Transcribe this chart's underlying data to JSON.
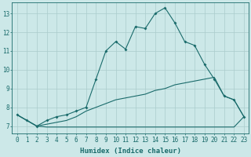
{
  "xlabel": "Humidex (Indice chaleur)",
  "background_color": "#cce8e8",
  "grid_color": "#aacccc",
  "line_color": "#1a6b6b",
  "xlim": [
    -0.5,
    23.5
  ],
  "ylim": [
    6.6,
    13.6
  ],
  "xticks": [
    0,
    1,
    2,
    3,
    4,
    5,
    6,
    7,
    8,
    9,
    10,
    11,
    12,
    13,
    14,
    15,
    16,
    17,
    18,
    19,
    20,
    21,
    22,
    23
  ],
  "yticks": [
    7,
    8,
    9,
    10,
    11,
    12,
    13
  ],
  "series1_x": [
    0,
    1,
    2,
    3,
    4,
    5,
    6,
    7,
    8,
    9,
    10,
    11,
    12,
    13,
    14,
    15,
    16,
    17,
    18,
    19,
    20,
    21,
    22,
    23
  ],
  "series1_y": [
    7.6,
    7.3,
    7.0,
    7.3,
    7.5,
    7.6,
    7.8,
    8.0,
    9.5,
    11.0,
    11.5,
    11.1,
    12.3,
    12.2,
    13.0,
    13.3,
    12.5,
    11.5,
    11.3,
    10.3,
    9.5,
    8.6,
    8.4,
    7.5
  ],
  "series2_x": [
    0,
    1,
    2,
    3,
    4,
    5,
    6,
    7,
    8,
    9,
    10,
    11,
    12,
    13,
    14,
    15,
    16,
    17,
    18,
    19,
    20,
    21,
    22,
    23
  ],
  "series2_y": [
    7.6,
    7.3,
    7.0,
    7.1,
    7.2,
    7.3,
    7.5,
    7.8,
    8.0,
    8.2,
    8.4,
    8.5,
    8.6,
    8.7,
    8.9,
    9.0,
    9.2,
    9.3,
    9.4,
    9.5,
    9.6,
    8.6,
    8.4,
    7.5
  ],
  "series3_x": [
    0,
    1,
    2,
    3,
    4,
    5,
    6,
    7,
    8,
    9,
    10,
    11,
    12,
    13,
    14,
    15,
    16,
    17,
    18,
    19,
    20,
    21,
    22,
    23
  ],
  "series3_y": [
    7.6,
    7.3,
    7.0,
    6.95,
    6.95,
    6.95,
    6.95,
    6.95,
    6.95,
    6.95,
    6.95,
    6.95,
    6.95,
    6.95,
    6.95,
    6.95,
    6.95,
    6.95,
    6.95,
    6.95,
    6.95,
    6.95,
    6.95,
    7.5
  ],
  "xlabel_fontsize": 6.5,
  "tick_fontsize": 5.5
}
